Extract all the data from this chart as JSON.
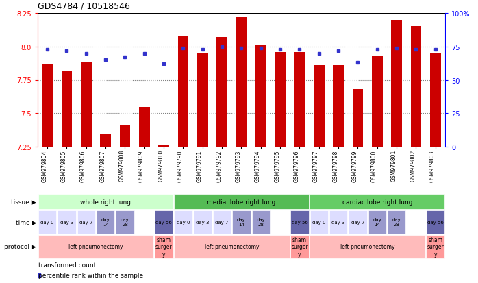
{
  "title": "GDS4784 / 10518546",
  "samples": [
    "GSM979804",
    "GSM979805",
    "GSM979806",
    "GSM979807",
    "GSM979808",
    "GSM979809",
    "GSM979810",
    "GSM979790",
    "GSM979791",
    "GSM979792",
    "GSM979793",
    "GSM979794",
    "GSM979795",
    "GSM979796",
    "GSM979797",
    "GSM979798",
    "GSM979799",
    "GSM979800",
    "GSM979801",
    "GSM979802",
    "GSM979803"
  ],
  "red_values": [
    7.87,
    7.82,
    7.88,
    7.35,
    7.41,
    7.55,
    7.26,
    8.08,
    7.95,
    8.07,
    8.22,
    8.01,
    7.96,
    7.96,
    7.86,
    7.86,
    7.68,
    7.93,
    8.2,
    8.15,
    7.95
  ],
  "blue_values": [
    73,
    72,
    70,
    65,
    67,
    70,
    62,
    74,
    73,
    75,
    74,
    74,
    73,
    73,
    70,
    72,
    63,
    73,
    74,
    73,
    73
  ],
  "ylim_left": [
    7.25,
    8.25
  ],
  "ylim_right": [
    0,
    100
  ],
  "yticks_left": [
    7.25,
    7.5,
    7.75,
    8.0,
    8.25
  ],
  "yticks_right": [
    0,
    25,
    50,
    75,
    100
  ],
  "bar_color": "#cc0000",
  "dot_color": "#3333cc",
  "tissue_colors": [
    "#ccffcc",
    "#55bb55",
    "#66cc66"
  ],
  "tissue_groups": [
    {
      "label": "whole right lung",
      "start": 0,
      "end": 7
    },
    {
      "label": "medial lobe right lung",
      "start": 7,
      "end": 14
    },
    {
      "label": "cardiac lobe right lung",
      "start": 14,
      "end": 21
    }
  ],
  "time_seq": [
    [
      "day 0",
      0,
      1,
      "#ddddff"
    ],
    [
      "day 3",
      1,
      2,
      "#ddddff"
    ],
    [
      "day 7",
      2,
      3,
      "#ddddff"
    ],
    [
      "day\n14",
      3,
      4,
      "#9999cc"
    ],
    [
      "day\n28",
      4,
      5,
      "#9999cc"
    ],
    [
      "day 56",
      6,
      7,
      "#6666aa"
    ],
    [
      "day 0",
      7,
      8,
      "#ddddff"
    ],
    [
      "day 3",
      8,
      9,
      "#ddddff"
    ],
    [
      "day 7",
      9,
      10,
      "#ddddff"
    ],
    [
      "day\n14",
      10,
      11,
      "#9999cc"
    ],
    [
      "day\n28",
      11,
      12,
      "#9999cc"
    ],
    [
      "day 56",
      13,
      14,
      "#6666aa"
    ],
    [
      "day 0",
      14,
      15,
      "#ddddff"
    ],
    [
      "day 3",
      15,
      16,
      "#ddddff"
    ],
    [
      "day 7",
      16,
      17,
      "#ddddff"
    ],
    [
      "day\n14",
      17,
      18,
      "#9999cc"
    ],
    [
      "day\n28",
      18,
      19,
      "#9999cc"
    ],
    [
      "day 56",
      20,
      21,
      "#6666aa"
    ]
  ],
  "protocol_seq": [
    [
      "left pneumonectomy",
      0,
      6,
      "#ffbbbb"
    ],
    [
      "sham\nsurger\ny",
      6,
      7,
      "#ff9999"
    ],
    [
      "left pneumonectomy",
      7,
      13,
      "#ffbbbb"
    ],
    [
      "sham\nsurger\ny",
      13,
      14,
      "#ff9999"
    ],
    [
      "left pneumonectomy",
      14,
      20,
      "#ffbbbb"
    ],
    [
      "sham\nsurger\ny",
      20,
      21,
      "#ff9999"
    ]
  ]
}
